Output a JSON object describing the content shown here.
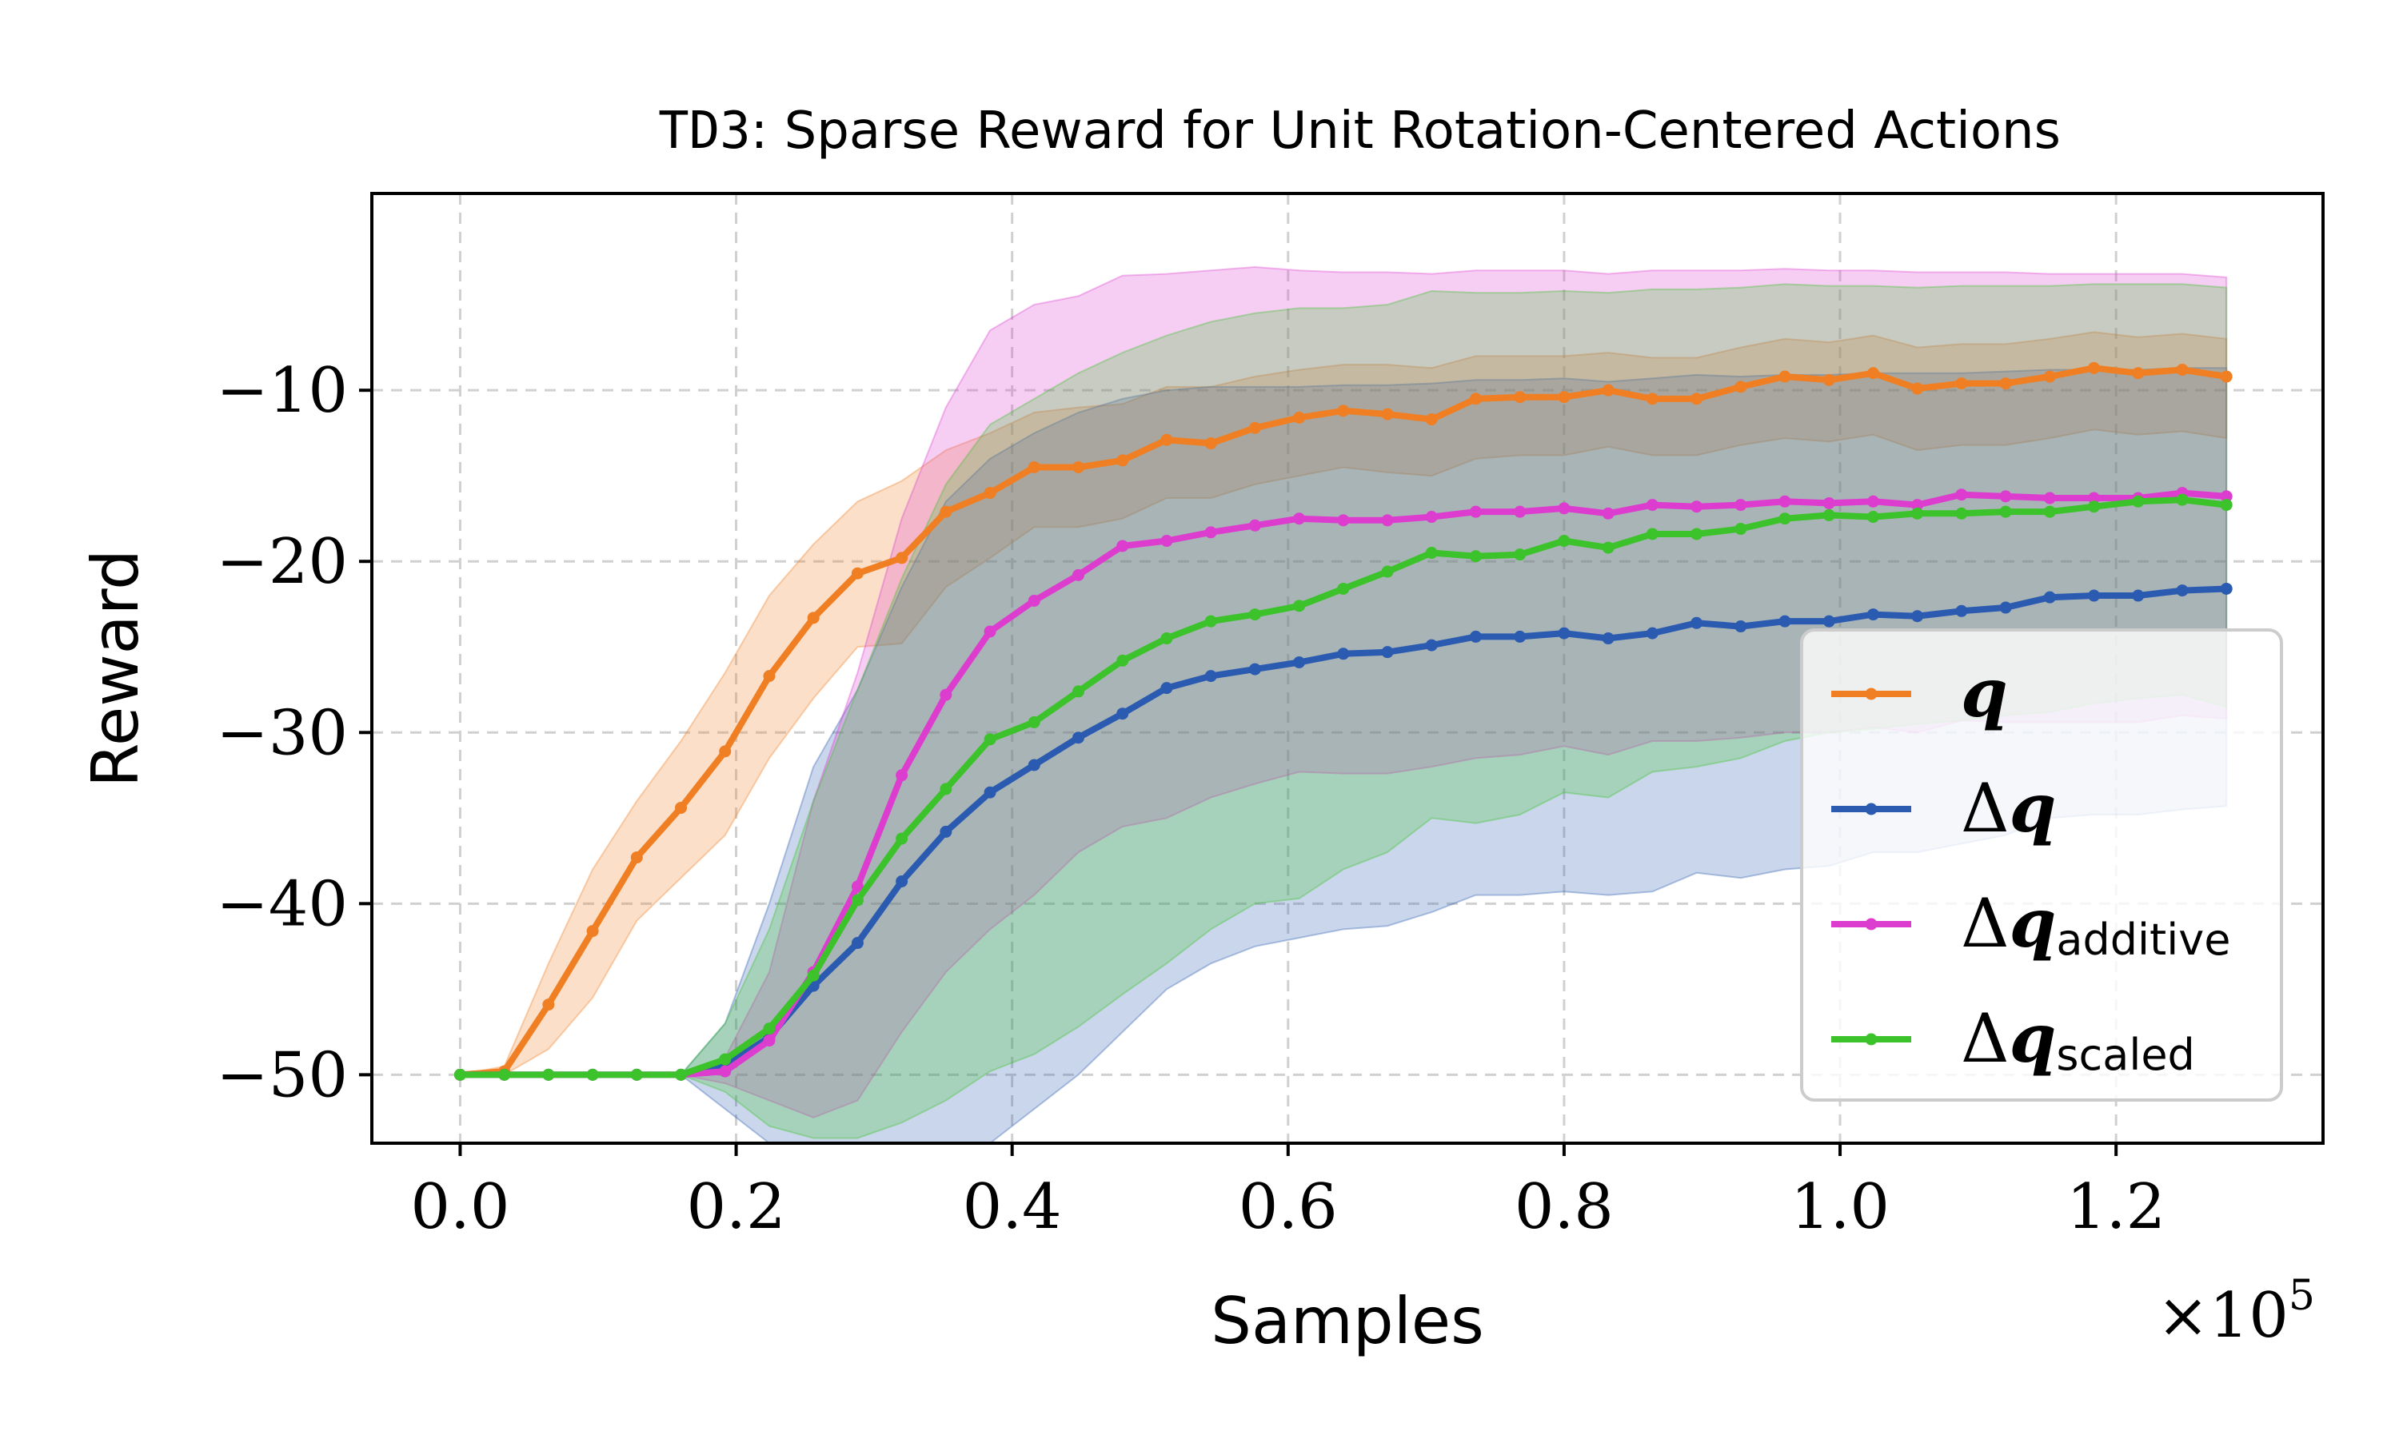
{
  "chart_data": {
    "type": "line",
    "title_prefix": "TD3",
    "title_rest": ": Sparse Reward for Unit Rotation-Centered Actions",
    "xlabel": "Samples",
    "ylabel": "Reward",
    "x_multiplier": "×10",
    "x_multiplier_exp": "5",
    "xlim": [
      -0.064,
      1.35
    ],
    "ylim": [
      -54,
      1.5
    ],
    "xticks": [
      0.0,
      0.2,
      0.4,
      0.6,
      0.8,
      1.0,
      1.2
    ],
    "xtick_labels": [
      "0.0",
      "0.2",
      "0.4",
      "0.6",
      "0.8",
      "1.0",
      "1.2"
    ],
    "yticks": [
      -10,
      -20,
      -30,
      -40,
      -50
    ],
    "ytick_labels": [
      "−10",
      "−20",
      "−30",
      "−40",
      "−50"
    ],
    "grid": true,
    "legend_position": "lower-right",
    "x": [
      0.0,
      0.032,
      0.064,
      0.096,
      0.128,
      0.16,
      0.192,
      0.224,
      0.256,
      0.288,
      0.32,
      0.352,
      0.384,
      0.416,
      0.448,
      0.48,
      0.512,
      0.544,
      0.576,
      0.608,
      0.64,
      0.672,
      0.704,
      0.736,
      0.768,
      0.8,
      0.832,
      0.864,
      0.896,
      0.928,
      0.96,
      0.992,
      1.024,
      1.056,
      1.088,
      1.12,
      1.152,
      1.184,
      1.216,
      1.248,
      1.28
    ],
    "series": [
      {
        "name": "q",
        "label_main": "q",
        "label_sub": "",
        "has_delta": false,
        "color": "#f07f24",
        "values": [
          -50,
          -49.8,
          -45.9,
          -41.6,
          -37.3,
          -34.4,
          -31.1,
          -26.7,
          -23.3,
          -20.7,
          -19.8,
          -17.1,
          -16.0,
          -14.5,
          -14.5,
          -14.1,
          -12.9,
          -13.1,
          -12.2,
          -11.6,
          -11.2,
          -11.4,
          -11.7,
          -10.5,
          -10.4,
          -10.4,
          -10.0,
          -10.5,
          -10.5,
          -9.8,
          -9.2,
          -9.4,
          -9.0,
          -9.9,
          -9.6,
          -9.6,
          -9.2,
          -8.7,
          -9.0,
          -8.8,
          -9.2
        ],
        "lower": [
          -50,
          -50,
          -48.5,
          -45.5,
          -41.0,
          -38.5,
          -36.0,
          -31.5,
          -28.0,
          -25.0,
          -24.8,
          -21.5,
          -19.8,
          -18.0,
          -18.0,
          -17.5,
          -16.3,
          -16.3,
          -15.5,
          -15.0,
          -14.5,
          -14.8,
          -15.0,
          -14.0,
          -13.8,
          -13.8,
          -13.3,
          -13.8,
          -13.8,
          -13.2,
          -12.8,
          -13.0,
          -12.6,
          -13.5,
          -13.2,
          -13.2,
          -12.8,
          -12.3,
          -12.6,
          -12.4,
          -12.8
        ],
        "upper": [
          -50,
          -49.5,
          -43.5,
          -38.0,
          -34.0,
          -30.5,
          -26.5,
          -22.0,
          -19.0,
          -16.5,
          -15.3,
          -13.5,
          -12.5,
          -11.3,
          -11.0,
          -10.8,
          -9.8,
          -9.8,
          -9.2,
          -8.8,
          -8.5,
          -8.5,
          -8.7,
          -8.0,
          -8.0,
          -8.0,
          -7.8,
          -8.1,
          -8.1,
          -7.5,
          -7.0,
          -7.2,
          -6.8,
          -7.5,
          -7.3,
          -7.3,
          -7.0,
          -6.6,
          -6.9,
          -6.7,
          -7.0
        ]
      },
      {
        "name": "Δq",
        "label_main": "q",
        "label_sub": "",
        "has_delta": true,
        "color": "#2b5bb0",
        "values": [
          -50,
          -50,
          -50,
          -50,
          -50,
          -50,
          -49.5,
          -47.8,
          -44.8,
          -42.3,
          -38.7,
          -35.8,
          -33.5,
          -31.9,
          -30.3,
          -28.9,
          -27.4,
          -26.7,
          -26.3,
          -25.9,
          -25.4,
          -25.3,
          -24.9,
          -24.4,
          -24.4,
          -24.2,
          -24.5,
          -24.2,
          -23.6,
          -23.8,
          -23.5,
          -23.5,
          -23.1,
          -23.2,
          -22.9,
          -22.7,
          -22.1,
          -22.0,
          -22.0,
          -21.7,
          -21.6
        ],
        "lower": [
          -50,
          -50,
          -50,
          -50,
          -50,
          -50,
          -52.0,
          -55.5,
          -58.0,
          -58.0,
          -56.5,
          -55.5,
          -54.0,
          -52.0,
          -50.0,
          -47.5,
          -45.0,
          -43.5,
          -42.5,
          -42.0,
          -41.5,
          -41.3,
          -40.5,
          -39.5,
          -39.5,
          -39.3,
          -39.5,
          -39.3,
          -38.2,
          -38.5,
          -38.0,
          -37.8,
          -37.0,
          -37.0,
          -36.5,
          -36.0,
          -35.0,
          -34.8,
          -34.8,
          -34.5,
          -34.3
        ],
        "upper": [
          -50,
          -50,
          -50,
          -50,
          -50,
          -50,
          -47.0,
          -40.0,
          -32.0,
          -27.5,
          -21.5,
          -16.5,
          -14.0,
          -12.5,
          -11.3,
          -10.5,
          -10.0,
          -9.8,
          -9.8,
          -9.8,
          -9.7,
          -9.7,
          -9.6,
          -9.4,
          -9.4,
          -9.3,
          -9.5,
          -9.3,
          -9.1,
          -9.2,
          -9.1,
          -9.1,
          -9.0,
          -9.0,
          -9.0,
          -8.9,
          -8.8,
          -8.8,
          -8.8,
          -8.7,
          -8.7
        ]
      },
      {
        "name": "Δq_additive",
        "label_main": "q",
        "label_sub": "additive",
        "has_delta": true,
        "color": "#dc3dcf",
        "values": [
          -50,
          -50,
          -50,
          -50,
          -50,
          -50,
          -49.8,
          -48.0,
          -44.0,
          -39.0,
          -32.5,
          -27.8,
          -24.1,
          -22.3,
          -20.8,
          -19.1,
          -18.8,
          -18.3,
          -17.9,
          -17.5,
          -17.6,
          -17.6,
          -17.4,
          -17.1,
          -17.1,
          -16.9,
          -17.2,
          -16.7,
          -16.8,
          -16.7,
          -16.5,
          -16.6,
          -16.5,
          -16.7,
          -16.1,
          -16.2,
          -16.3,
          -16.3,
          -16.3,
          -16.0,
          -16.2
        ],
        "lower": [
          -50,
          -50,
          -50,
          -50,
          -50,
          -50,
          -50.5,
          -51.5,
          -52.5,
          -51.5,
          -47.5,
          -44.0,
          -41.5,
          -39.5,
          -37.0,
          -35.5,
          -35.0,
          -33.8,
          -33.0,
          -32.3,
          -32.4,
          -32.4,
          -32.0,
          -31.5,
          -31.3,
          -30.8,
          -31.3,
          -30.5,
          -30.5,
          -30.3,
          -30.0,
          -30.0,
          -29.7,
          -30.0,
          -29.3,
          -29.4,
          -29.4,
          -29.4,
          -29.4,
          -29.0,
          -29.2
        ],
        "upper": [
          -50,
          -50,
          -50,
          -50,
          -50,
          -50,
          -49.0,
          -44.0,
          -34.0,
          -26.5,
          -17.5,
          -11.0,
          -6.5,
          -5.0,
          -4.5,
          -3.3,
          -3.2,
          -3.0,
          -2.8,
          -3.0,
          -3.1,
          -3.1,
          -3.2,
          -3.0,
          -3.0,
          -3.0,
          -3.2,
          -3.0,
          -3.0,
          -3.0,
          -2.9,
          -3.0,
          -3.0,
          -3.1,
          -3.1,
          -3.1,
          -3.2,
          -3.2,
          -3.2,
          -3.2,
          -3.4
        ]
      },
      {
        "name": "Δq_scaled",
        "label_main": "q",
        "label_sub": "scaled",
        "has_delta": true,
        "color": "#3cc22a",
        "values": [
          -50,
          -50,
          -50,
          -50,
          -50,
          -50,
          -49.1,
          -47.3,
          -44.2,
          -39.8,
          -36.2,
          -33.3,
          -30.4,
          -29.4,
          -27.6,
          -25.8,
          -24.5,
          -23.5,
          -23.1,
          -22.6,
          -21.6,
          -20.6,
          -19.5,
          -19.7,
          -19.6,
          -18.8,
          -19.2,
          -18.4,
          -18.4,
          -18.1,
          -17.5,
          -17.3,
          -17.4,
          -17.2,
          -17.2,
          -17.1,
          -17.1,
          -16.8,
          -16.5,
          -16.4,
          -16.7
        ],
        "lower": [
          -50,
          -50,
          -50,
          -50,
          -50,
          -50,
          -51.0,
          -53.0,
          -53.7,
          -53.7,
          -52.8,
          -51.5,
          -49.8,
          -48.8,
          -47.2,
          -45.3,
          -43.5,
          -41.5,
          -40.0,
          -39.7,
          -38.0,
          -37.0,
          -35.0,
          -35.3,
          -34.8,
          -33.5,
          -33.8,
          -32.3,
          -32.0,
          -31.5,
          -30.5,
          -30.0,
          -29.8,
          -29.5,
          -29.3,
          -29.0,
          -28.8,
          -28.3,
          -28.0,
          -27.8,
          -28.5
        ],
        "upper": [
          -50,
          -50,
          -50,
          -50,
          -50,
          -50,
          -47.0,
          -41.5,
          -34.0,
          -27.5,
          -21.0,
          -15.5,
          -12.0,
          -10.5,
          -9.0,
          -7.8,
          -6.8,
          -6.0,
          -5.5,
          -5.2,
          -5.2,
          -5.0,
          -4.2,
          -4.3,
          -4.3,
          -4.2,
          -4.3,
          -4.1,
          -4.1,
          -4.0,
          -3.8,
          -3.9,
          -3.9,
          -4.0,
          -3.9,
          -3.9,
          -3.9,
          -3.8,
          -3.8,
          -3.8,
          -4.0
        ]
      }
    ]
  }
}
